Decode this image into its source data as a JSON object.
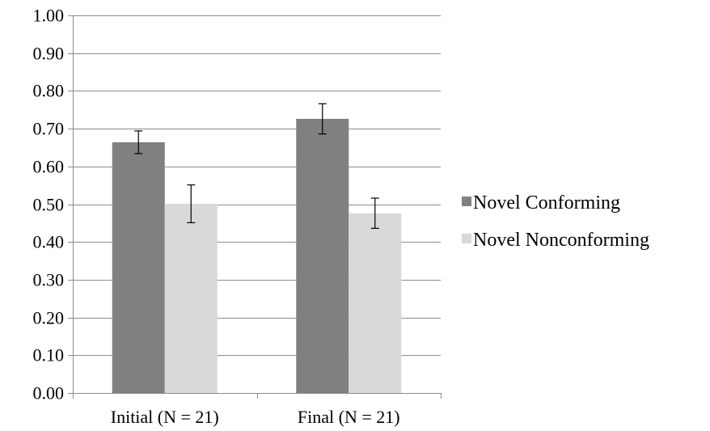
{
  "chart_data": {
    "type": "bar",
    "title": "",
    "xlabel": "",
    "ylabel": "",
    "ylim": [
      0,
      1
    ],
    "yticks": [
      "0.00",
      "0.10",
      "0.20",
      "0.30",
      "0.40",
      "0.50",
      "0.60",
      "0.70",
      "0.80",
      "0.90",
      "1.00"
    ],
    "grid": true,
    "legend_position": "right",
    "categories": [
      "Initial (N = 21)",
      "Final (N = 21)"
    ],
    "series": [
      {
        "name": "Novel Conforming",
        "color": "#808080",
        "values": [
          0.664,
          0.726
        ],
        "error": [
          0.03,
          0.04
        ]
      },
      {
        "name": "Novel Nonconforming",
        "color": "#d9d9d9",
        "values": [
          0.501,
          0.476
        ],
        "error": [
          0.05,
          0.04
        ]
      }
    ]
  }
}
